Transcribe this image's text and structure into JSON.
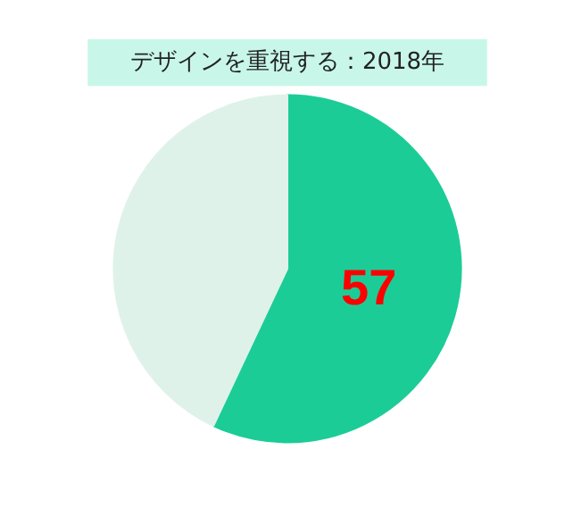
{
  "chart_data": {
    "type": "pie",
    "title": "デザインを重視する：2018年",
    "categories": [
      null,
      null
    ],
    "values": [
      57,
      43
    ],
    "colors": [
      "#1ccc97",
      "#dff2ea"
    ],
    "value_labels": [
      "57",
      null
    ]
  }
}
